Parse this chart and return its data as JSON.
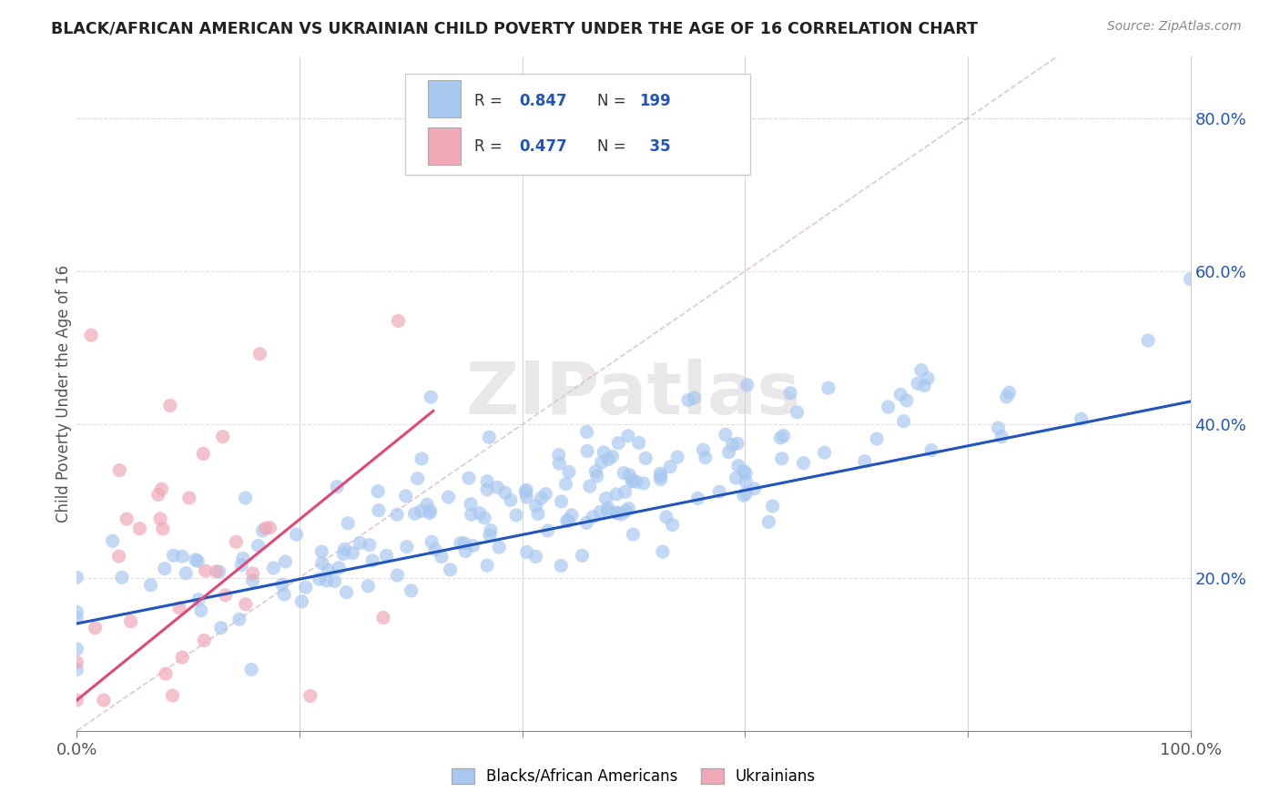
{
  "title": "BLACK/AFRICAN AMERICAN VS UKRAINIAN CHILD POVERTY UNDER THE AGE OF 16 CORRELATION CHART",
  "source": "Source: ZipAtlas.com",
  "ylabel": "Child Poverty Under the Age of 16",
  "blue_R": 0.847,
  "blue_N": 199,
  "pink_R": 0.477,
  "pink_N": 35,
  "xlim": [
    0,
    1
  ],
  "ylim": [
    0.0,
    0.88
  ],
  "xticks": [
    0.0,
    0.2,
    0.4,
    0.6,
    0.8,
    1.0
  ],
  "xticklabels": [
    "0.0%",
    "",
    "",
    "",
    "",
    "100.0%"
  ],
  "yticks": [
    0.2,
    0.4,
    0.6,
    0.8
  ],
  "yticklabels": [
    "20.0%",
    "40.0%",
    "60.0%",
    "80.0%"
  ],
  "blue_color": "#a8c8f0",
  "pink_color": "#f0a8b8",
  "blue_line_color": "#2255bb",
  "pink_line_color": "#e04878",
  "diagonal_color": "#ddbbbb",
  "watermark": "ZIPatlas",
  "legend_label_blue": "Blacks/African Americans",
  "legend_label_pink": "Ukrainians",
  "background_color": "#ffffff",
  "grid_color": "#dddddd",
  "title_color": "#222222",
  "source_color": "#888888",
  "tick_color": "#2255bb",
  "axis_color": "#888888"
}
